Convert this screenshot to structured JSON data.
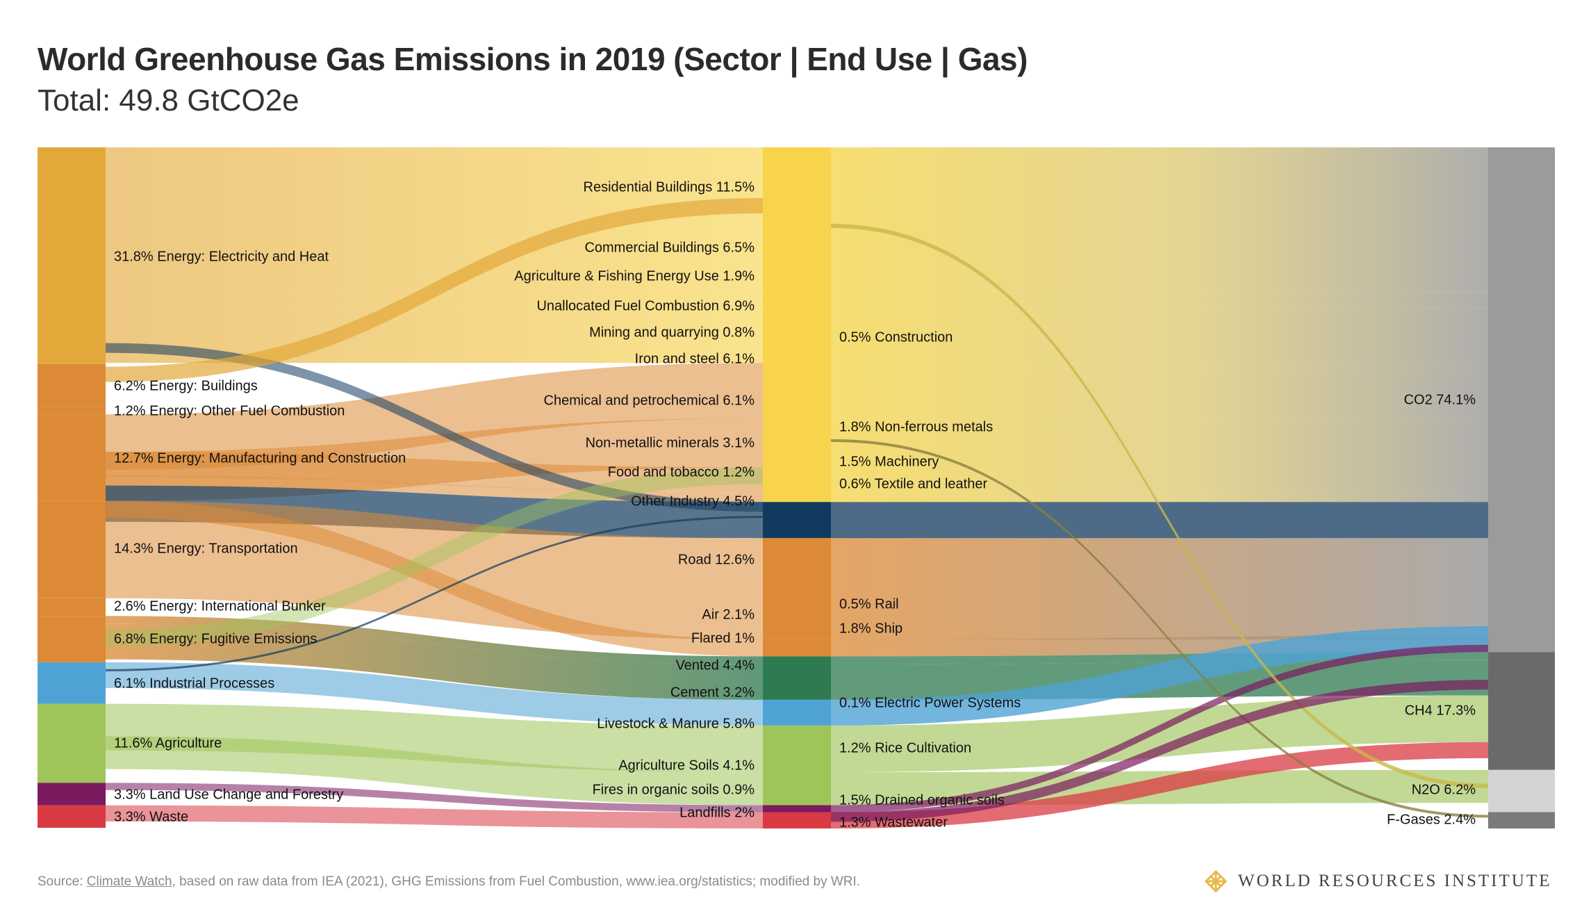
{
  "title": "World Greenhouse Gas Emissions in 2019 (Sector | End Use | Gas)",
  "subtitle": "Total: 49.8 GtCO2e",
  "source": {
    "prefix": "Source: ",
    "link": "Climate Watch",
    "suffix": ", based on raw data from IEA (2021), GHG Emissions from Fuel Combustion, www.iea.org/statistics; modified by WRI."
  },
  "logo": {
    "text": "WORLD RESOURCES INSTITUTE",
    "icon": "diamond-knot-icon",
    "color": "#e8b84a"
  },
  "colors": {
    "energy_dark": "#e3a83a",
    "energy_orange": "#dd8a36",
    "end_yellow": "#f7d44c",
    "other_industry": "#123a5e",
    "fugitive": "#2e7a50",
    "industrial": "#4fa3d4",
    "agriculture": "#9fc45a",
    "landuse": "#7b1a5e",
    "waste": "#d93a43",
    "gas_co2": "#9b9b9b",
    "gas_ch4": "#6a6a6a",
    "gas_n2o": "#d4d4d4",
    "gas_fgas": "#7a7a7a"
  },
  "chart_data": {
    "type": "sankey",
    "title": "World Greenhouse Gas Emissions in 2019 (Sector | End Use | Gas)",
    "total": "49.8 GtCO2e",
    "units": "% of total emissions",
    "sectors": [
      {
        "label": "31.8% Energy: Electricity and Heat",
        "value": 31.8
      },
      {
        "label": "6.2% Energy: Buildings",
        "value": 6.2
      },
      {
        "label": "1.2% Energy: Other Fuel Combustion",
        "value": 1.2
      },
      {
        "label": "12.7% Energy: Manufacturing and Construction",
        "value": 12.7
      },
      {
        "label": "14.3% Energy: Transportation",
        "value": 14.3
      },
      {
        "label": "2.6% Energy: International Bunker",
        "value": 2.6
      },
      {
        "label": "6.8% Energy: Fugitive Emissions",
        "value": 6.8
      },
      {
        "label": "6.1% Industrial Processes",
        "value": 6.1
      },
      {
        "label": "11.6% Agriculture",
        "value": 11.6
      },
      {
        "label": "3.3% Land Use Change and Forestry",
        "value": 3.3
      },
      {
        "label": "3.3% Waste",
        "value": 3.3
      }
    ],
    "end_uses": [
      {
        "label": "Residential Buildings 11.5%",
        "value": 11.5
      },
      {
        "label": "Commercial Buildings 6.5%",
        "value": 6.5
      },
      {
        "label": "Agriculture & Fishing Energy Use 1.9%",
        "value": 1.9
      },
      {
        "label": "Unallocated Fuel Combustion 6.9%",
        "value": 6.9
      },
      {
        "label": "Mining and quarrying 0.8%",
        "value": 0.8
      },
      {
        "label": "Iron and steel 6.1%",
        "value": 6.1
      },
      {
        "label": "Chemical and petrochemical 6.1%",
        "value": 6.1
      },
      {
        "label": "Non-metallic minerals 3.1%",
        "value": 3.1
      },
      {
        "label": "Food and tobacco 1.2%",
        "value": 1.2
      },
      {
        "label": "Other Industry 4.5%",
        "value": 4.5
      },
      {
        "label": "Road 12.6%",
        "value": 12.6
      },
      {
        "label": "Air 2.1%",
        "value": 2.1
      },
      {
        "label": "Flared 1%",
        "value": 1.0
      },
      {
        "label": "Vented 4.4%",
        "value": 4.4
      },
      {
        "label": "Cement 3.2%",
        "value": 3.2
      },
      {
        "label": "Livestock & Manure 5.8%",
        "value": 5.8
      },
      {
        "label": "Agriculture Soils 4.1%",
        "value": 4.1
      },
      {
        "label": "Fires in organic soils 0.9%",
        "value": 0.9
      },
      {
        "label": "Landfills 2%",
        "value": 2.0
      }
    ],
    "end_uses_right": [
      {
        "label": "0.5% Construction",
        "value": 0.5
      },
      {
        "label": "1.8% Non-ferrous metals",
        "value": 1.8
      },
      {
        "label": "1.5% Machinery",
        "value": 1.5
      },
      {
        "label": "0.6% Textile and leather",
        "value": 0.6
      },
      {
        "label": "0.5% Rail",
        "value": 0.5
      },
      {
        "label": "1.8% Ship",
        "value": 1.8
      },
      {
        "label": "0.1% Electric Power Systems",
        "value": 0.1
      },
      {
        "label": "1.2% Rice Cultivation",
        "value": 1.2
      },
      {
        "label": "1.5% Drained organic soils",
        "value": 1.5
      },
      {
        "label": "1.3% Wastewater",
        "value": 1.3
      }
    ],
    "gases": [
      {
        "label": "CO2 74.1%",
        "value": 74.1
      },
      {
        "label": "CH4 17.3%",
        "value": 17.3
      },
      {
        "label": "N2O 6.2%",
        "value": 6.2
      },
      {
        "label": "F-Gases 2.4%",
        "value": 2.4
      }
    ]
  }
}
